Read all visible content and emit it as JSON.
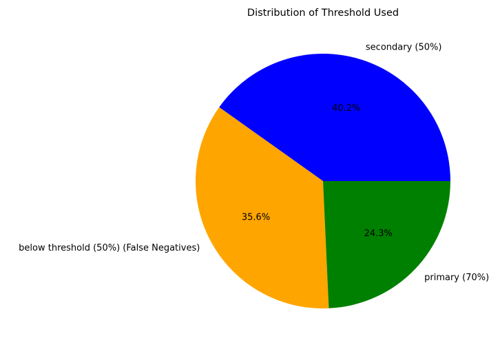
{
  "chart_data": {
    "type": "pie",
    "title": "Distribution of Threshold Used",
    "slices": [
      {
        "label": "secondary (50%)",
        "value": 40.2,
        "pct_label": "40.2%",
        "color": "#0000ff"
      },
      {
        "label": "below threshold (50%) (False Negatives)",
        "value": 35.6,
        "pct_label": "35.6%",
        "color": "#ffa500"
      },
      {
        "label": "primary (70%)",
        "value": 24.3,
        "pct_label": "24.3%",
        "color": "#008000"
      }
    ],
    "start_angle_deg": 0,
    "direction": "counterclockwise",
    "legend": "none"
  }
}
